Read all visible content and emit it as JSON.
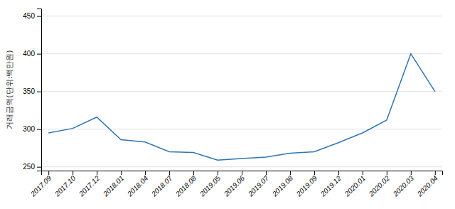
{
  "chart_data": {
    "type": "line",
    "y_label": "거래금액(단위:백만원)",
    "categories": [
      "2017.09",
      "2017.10",
      "2017.12",
      "2018.01",
      "2018.04",
      "2018.07",
      "2018.08",
      "2019.05",
      "2019.06",
      "2019.07",
      "2019.08",
      "2019.09",
      "2019.12",
      "2020.01",
      "2020.02",
      "2020.03",
      "2020.04"
    ],
    "values": [
      295,
      301,
      316,
      286,
      283,
      270,
      269,
      259,
      261,
      263,
      268,
      270,
      282,
      295,
      312,
      400,
      350
    ],
    "color": "#2e75b6",
    "ylim": [
      245,
      460
    ],
    "yticks": [
      250,
      300,
      350,
      400,
      450
    ],
    "grid": true
  }
}
